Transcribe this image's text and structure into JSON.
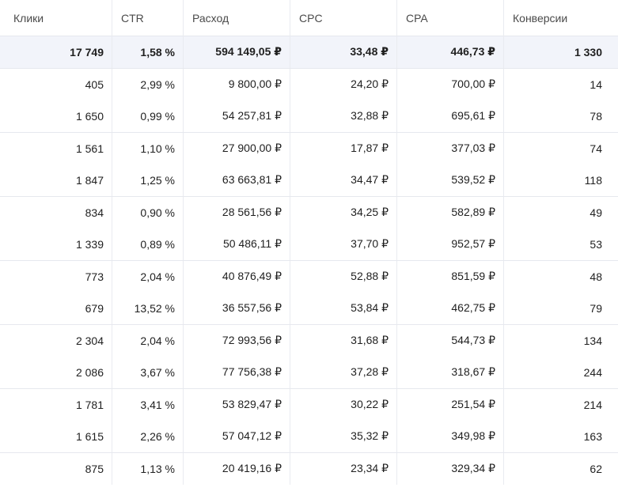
{
  "columns": [
    "Клики",
    "CTR",
    "Расход",
    "CPC",
    "CPA",
    "Конверсии"
  ],
  "total": [
    "17 749",
    "1,58 %",
    "594 149,05 ₽",
    "33,48 ₽",
    "446,73 ₽",
    "1 330"
  ],
  "rows": [
    [
      "405",
      "2,99 %",
      "9 800,00 ₽",
      "24,20 ₽",
      "700,00 ₽",
      "14"
    ],
    [
      "1 650",
      "0,99 %",
      "54 257,81 ₽",
      "32,88 ₽",
      "695,61 ₽",
      "78"
    ],
    [
      "1 561",
      "1,10 %",
      "27 900,00 ₽",
      "17,87 ₽",
      "377,03 ₽",
      "74"
    ],
    [
      "1 847",
      "1,25 %",
      "63 663,81 ₽",
      "34,47 ₽",
      "539,52 ₽",
      "118"
    ],
    [
      "834",
      "0,90 %",
      "28 561,56 ₽",
      "34,25 ₽",
      "582,89 ₽",
      "49"
    ],
    [
      "1 339",
      "0,89 %",
      "50 486,11 ₽",
      "37,70 ₽",
      "952,57 ₽",
      "53"
    ],
    [
      "773",
      "2,04 %",
      "40 876,49 ₽",
      "52,88 ₽",
      "851,59 ₽",
      "48"
    ],
    [
      "679",
      "13,52 %",
      "36 557,56 ₽",
      "53,84 ₽",
      "462,75 ₽",
      "79"
    ],
    [
      "2 304",
      "2,04 %",
      "72 993,56 ₽",
      "31,68 ₽",
      "544,73 ₽",
      "134"
    ],
    [
      "2 086",
      "3,67 %",
      "77 756,38 ₽",
      "37,28 ₽",
      "318,67 ₽",
      "244"
    ],
    [
      "1 781",
      "3,41 %",
      "53 829,47 ₽",
      "30,22 ₽",
      "251,54 ₽",
      "214"
    ],
    [
      "1 615",
      "2,26 %",
      "57 047,12 ₽",
      "35,32 ₽",
      "349,98 ₽",
      "163"
    ],
    [
      "875",
      "1,13 %",
      "20 419,16 ₽",
      "23,34 ₽",
      "329,34 ₽",
      "62"
    ]
  ]
}
